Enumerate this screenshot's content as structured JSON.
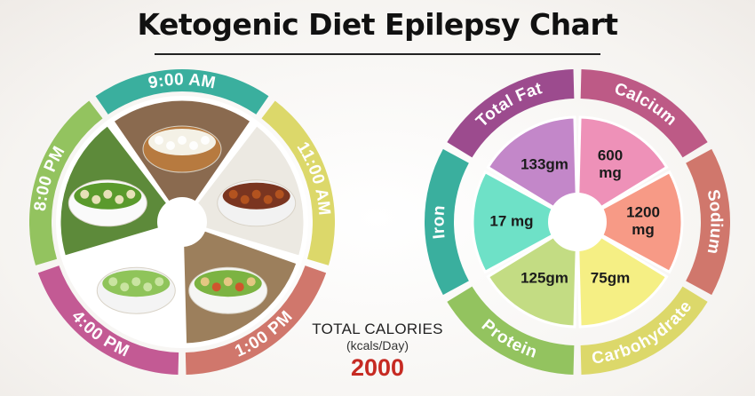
{
  "title": "Ketogenic Diet Epilepsy Chart",
  "meals": [
    {
      "time": "9:00 AM",
      "color": "#3aaf9e",
      "food": "cottage-cheese-bowl"
    },
    {
      "time": "11:00 AM",
      "color": "#dcd86a",
      "food": "bean-soup-bowl"
    },
    {
      "time": "1:00 PM",
      "color": "#d0776c",
      "food": "chicken-salad-bowl"
    },
    {
      "time": "4:00 PM",
      "color": "#c35a94",
      "food": "cucumber-salad-bowl"
    },
    {
      "time": "8:00 PM",
      "color": "#93c35f",
      "food": "spinach-soup-bowl"
    }
  ],
  "nutrients": [
    {
      "name": "Total Fat",
      "value": "133gm",
      "ring_color": "#9c4b8e",
      "slice_color": "#c387c9"
    },
    {
      "name": "Calcium",
      "value": "600 mg",
      "ring_color": "#bd5a86",
      "slice_color": "#ee91b8"
    },
    {
      "name": "Sodium",
      "value": "1200 mg",
      "ring_color": "#d0776c",
      "slice_color": "#f79a86"
    },
    {
      "name": "Carbohydrate",
      "value": "75gm",
      "ring_color": "#dcd86a",
      "slice_color": "#f5ef84"
    },
    {
      "name": "Protein",
      "value": "125gm",
      "ring_color": "#93c35f",
      "slice_color": "#c3dc83"
    },
    {
      "name": "Iron",
      "value": "17 mg",
      "ring_color": "#3aaf9e",
      "slice_color": "#6ee1c7"
    }
  ],
  "calories": {
    "label": "TOTAL CALORIES",
    "unit": "(kcals/Day)",
    "value": "2000"
  }
}
